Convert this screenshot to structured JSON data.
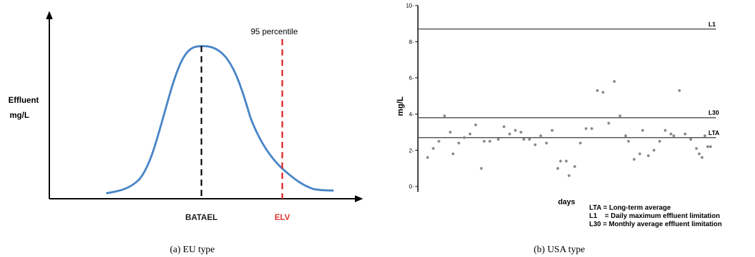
{
  "captions": {
    "left": "(a) EU type",
    "right": "(b) USA type"
  },
  "chart_data": [
    {
      "type": "line",
      "ylabel": [
        "Effluent",
        "mg/L"
      ],
      "markers": [
        {
          "label": "BATAEL",
          "color": "#1a1a1a"
        },
        {
          "label": "ELV",
          "color": "#e03030",
          "annotation": "95 percentile"
        }
      ],
      "colors": {
        "curve": "#4a86c8",
        "axis": "#000000"
      }
    },
    {
      "type": "scatter",
      "xlabel": "days",
      "ylabel": "mg/L",
      "ylim": [
        -0.3,
        10
      ],
      "yticks": [
        0,
        2,
        4,
        6,
        8,
        10
      ],
      "xlim": [
        0,
        100
      ],
      "reference_lines": [
        {
          "label": "L1",
          "value": 8.7
        },
        {
          "label": "L30",
          "value": 3.8
        },
        {
          "label": "LTA",
          "value": 2.7
        }
      ],
      "legend": [
        "LTA = Long-term average",
        "L1    = Daily maximum effluent limitation",
        "L30 = Monthly average effluent limitation"
      ],
      "points": [
        [
          1,
          1.6
        ],
        [
          3,
          2.1
        ],
        [
          5,
          2.5
        ],
        [
          7,
          3.9
        ],
        [
          9,
          3.0
        ],
        [
          10,
          1.8
        ],
        [
          12,
          2.4
        ],
        [
          14,
          2.7
        ],
        [
          16,
          2.9
        ],
        [
          18,
          3.4
        ],
        [
          20,
          1.0
        ],
        [
          21,
          2.5
        ],
        [
          23,
          2.5
        ],
        [
          26,
          2.6
        ],
        [
          28,
          3.3
        ],
        [
          30,
          2.9
        ],
        [
          32,
          3.1
        ],
        [
          34,
          3.0
        ],
        [
          35,
          2.6
        ],
        [
          37,
          2.6
        ],
        [
          39,
          2.3
        ],
        [
          41,
          2.8
        ],
        [
          43,
          2.4
        ],
        [
          45,
          3.1
        ],
        [
          47,
          1.0
        ],
        [
          48,
          1.4
        ],
        [
          50,
          1.4
        ],
        [
          51,
          0.6
        ],
        [
          53,
          1.1
        ],
        [
          55,
          2.4
        ],
        [
          57,
          3.2
        ],
        [
          59,
          3.2
        ],
        [
          61,
          5.3
        ],
        [
          63,
          5.2
        ],
        [
          65,
          3.5
        ],
        [
          67,
          5.8
        ],
        [
          69,
          3.9
        ],
        [
          71,
          2.8
        ],
        [
          72,
          2.5
        ],
        [
          74,
          1.5
        ],
        [
          76,
          1.8
        ],
        [
          77,
          3.1
        ],
        [
          79,
          1.7
        ],
        [
          81,
          2.0
        ],
        [
          83,
          2.5
        ],
        [
          85,
          3.1
        ],
        [
          87,
          2.9
        ],
        [
          88,
          2.8
        ],
        [
          90,
          5.3
        ],
        [
          92,
          2.9
        ],
        [
          94,
          2.6
        ],
        [
          96,
          2.1
        ],
        [
          97,
          1.8
        ],
        [
          98,
          1.6
        ],
        [
          99,
          2.8
        ],
        [
          100,
          2.2
        ],
        [
          101,
          2.2
        ]
      ],
      "colors": {
        "points": "#8a8a8a",
        "lines": "#555555",
        "axis": "#000000"
      }
    }
  ]
}
